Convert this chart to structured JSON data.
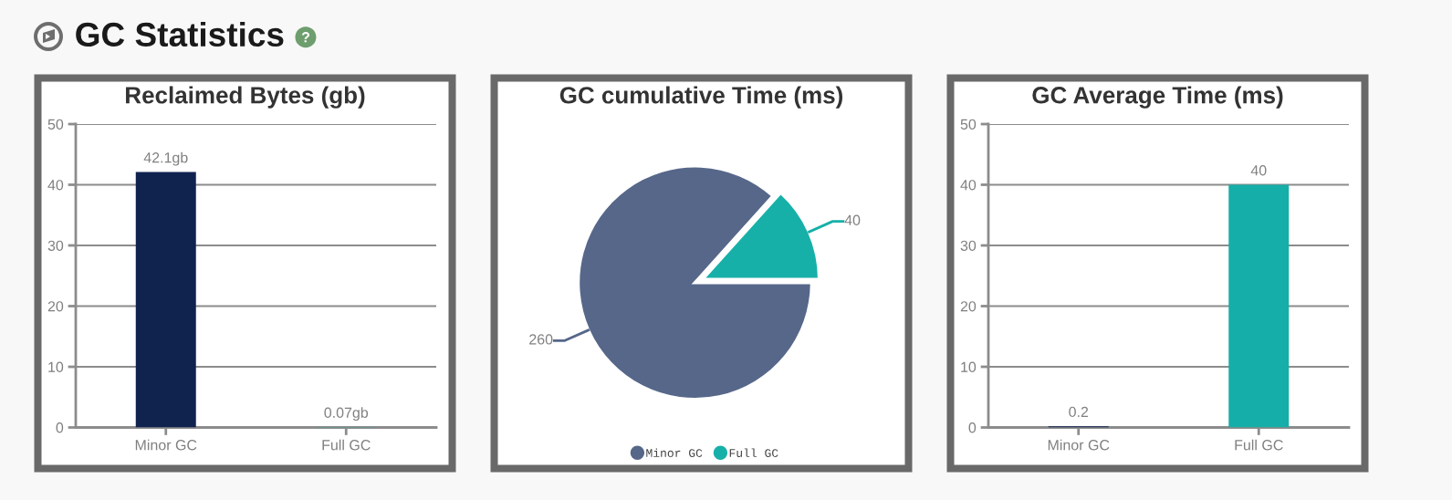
{
  "chart_data": [
    {
      "type": "other",
      "title": "GC Statistics"
    },
    {
      "type": "bar",
      "title": "Reclaimed Bytes (gb)",
      "categories": [
        "Minor GC",
        "Full GC"
      ],
      "values": [
        42.1,
        0.07
      ],
      "colors": [
        "#10234f",
        "#16aea8"
      ],
      "value_labels": [
        "42.1gb",
        "0.07gb"
      ],
      "ylim": [
        0,
        50
      ],
      "yticks": [
        0,
        10,
        20,
        30,
        40,
        50
      ],
      "grid": "y"
    },
    {
      "type": "pie",
      "title": "GC cumulative Time (ms)",
      "categories": [
        "Minor GC",
        "Full GC"
      ],
      "values": [
        260,
        40
      ],
      "colors": [
        "#566789",
        "#17b0a8"
      ],
      "data_labels": true,
      "legend": "bottom"
    },
    {
      "type": "bar",
      "title": "GC Average Time (ms)",
      "categories": [
        "Minor GC",
        "Full GC"
      ],
      "values": [
        0.2,
        40
      ],
      "colors": [
        "#10234f",
        "#16aea8"
      ],
      "data_labels": true,
      "ylim": [
        0,
        50
      ],
      "yticks": [
        0,
        10,
        20,
        30,
        40,
        50
      ],
      "grid": "y"
    }
  ]
}
